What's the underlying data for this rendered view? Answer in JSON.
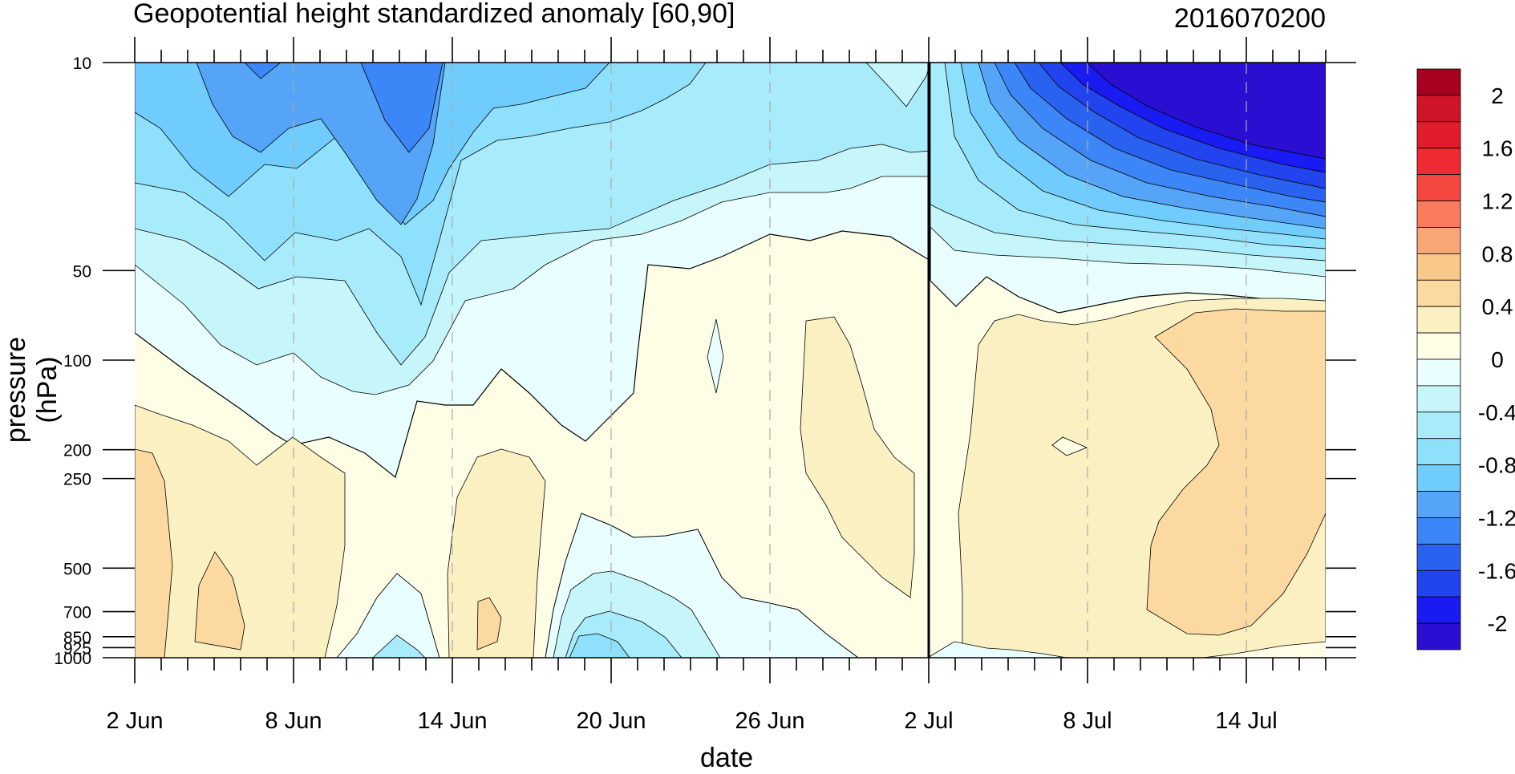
{
  "title": "Geopotential height standardized anomaly [60,90]",
  "stamp": "2016070200",
  "chart_data": {
    "type": "heatmap",
    "title": "Geopotential height standardized anomaly [60,90]",
    "xlabel": "date",
    "ylabel": "pressure (hPa)",
    "x_ticks": [
      "2 Jun",
      "8 Jun",
      "14 Jun",
      "20 Jun",
      "26 Jun",
      "2 Jul",
      "8 Jul",
      "14 Jul"
    ],
    "x_range": [
      "2016-06-02",
      "2016-07-17"
    ],
    "y_ticks": [
      10,
      50,
      100,
      200,
      250,
      500,
      700,
      850,
      925,
      1000
    ],
    "y_scale": "log",
    "y_reversed": true,
    "forecast_start": "2 Jul",
    "colorbar": {
      "levels": [
        -2.2,
        -2.0,
        -1.8,
        -1.6,
        -1.4,
        -1.2,
        -1.0,
        -0.8,
        -0.6,
        -0.4,
        -0.2,
        0,
        0.2,
        0.4,
        0.6,
        0.8,
        1.0,
        1.2,
        1.4,
        1.6,
        1.8,
        2.0,
        2.2
      ],
      "tick_labels": [
        "2",
        "1.6",
        "1.2",
        "0.8",
        "0.4",
        "0",
        "-0.4",
        "-0.8",
        "-1.2",
        "-1.6",
        "-2"
      ],
      "colors": [
        "#2a0fd2",
        "#1a1af2",
        "#2244ee",
        "#2a62f0",
        "#3d86f7",
        "#55a4f7",
        "#70ccfd",
        "#8ee0fb",
        "#a8ecfb",
        "#c7f6fa",
        "#e8feff",
        "#fefde6",
        "#fbf0c2",
        "#fbd9a0",
        "#f9c98a",
        "#f8a877",
        "#fa7c5e",
        "#f3473f",
        "#ef2a32",
        "#e31c2c",
        "#d0142a",
        "#a70122"
      ]
    },
    "regions": [
      {
        "name": "upper-left negative anomaly",
        "value_range": [
          -1.4,
          0
        ]
      },
      {
        "name": "lower-left positive anomaly",
        "value_range": [
          0,
          0.8
        ]
      },
      {
        "name": "forecast stratospheric negative anomaly",
        "value_range": [
          -2.2,
          0
        ]
      },
      {
        "name": "forecast tropospheric positive anomaly",
        "value_range": [
          0,
          0.6
        ]
      }
    ]
  }
}
